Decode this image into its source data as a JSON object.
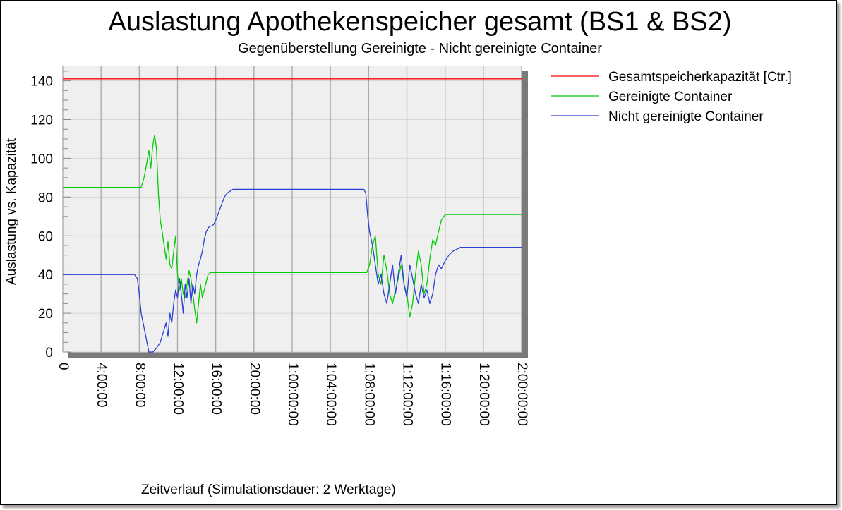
{
  "chart_data": {
    "type": "line",
    "title": "Auslastung Apothekenspeicher gesamt (BS1 & BS2)",
    "subtitle": "Gegenüberstellung Gereinigte - Nicht gereinigte Container",
    "xlabel": "Zeitverlauf (Simulationsdauer: 2 Werktage)",
    "ylabel": "Auslastung vs. Kapazität",
    "xlim": [
      0,
      48
    ],
    "ylim": [
      0,
      140
    ],
    "x_unit": "hours",
    "yticks": [
      0,
      20,
      40,
      60,
      80,
      100,
      120,
      140
    ],
    "xticks": [
      {
        "value": 0,
        "label": "0"
      },
      {
        "value": 4,
        "label": "4:00:00"
      },
      {
        "value": 8,
        "label": "8:00:00"
      },
      {
        "value": 12,
        "label": "12:00:00"
      },
      {
        "value": 16,
        "label": "16:00:00"
      },
      {
        "value": 20,
        "label": "20:00:00"
      },
      {
        "value": 24,
        "label": "1:00:00:00"
      },
      {
        "value": 28,
        "label": "1:04:00:00"
      },
      {
        "value": 32,
        "label": "1:08:00:00"
      },
      {
        "value": 36,
        "label": "1:12:00:00"
      },
      {
        "value": 40,
        "label": "1:16:00:00"
      },
      {
        "value": 44,
        "label": "1:20:00:00"
      },
      {
        "value": 48,
        "label": "2:00:00:00"
      }
    ],
    "grid": true,
    "legend_position": "right",
    "series": [
      {
        "name": "Gesamtspeicherkapazität [Ctr.]",
        "color": "#ff0000",
        "x": [
          0,
          48
        ],
        "y": [
          141,
          141
        ]
      },
      {
        "name": "Gereinigte Container",
        "color": "#00cc00",
        "x": [
          0,
          8.2,
          8.5,
          8.8,
          9.0,
          9.2,
          9.4,
          9.6,
          9.8,
          10.0,
          10.2,
          10.4,
          10.6,
          10.8,
          11.0,
          11.2,
          11.4,
          11.6,
          11.8,
          12.0,
          12.2,
          12.4,
          12.6,
          12.8,
          13.0,
          13.2,
          13.4,
          13.6,
          13.8,
          14.0,
          14.2,
          14.4,
          14.6,
          14.8,
          15.0,
          15.2,
          15.5,
          15.7,
          15.9,
          16.1,
          31.8,
          32.1,
          32.4,
          32.7,
          33.0,
          33.3,
          33.6,
          33.9,
          34.2,
          34.5,
          34.8,
          35.1,
          35.4,
          35.7,
          36.0,
          36.3,
          36.6,
          36.9,
          37.2,
          37.5,
          37.8,
          38.1,
          38.4,
          38.7,
          39.0,
          39.3,
          39.6,
          40.0,
          48
        ],
        "y": [
          85,
          85,
          90,
          98,
          104,
          95,
          106,
          112,
          105,
          82,
          68,
          62,
          55,
          48,
          57,
          45,
          43,
          52,
          60,
          40,
          32,
          38,
          30,
          28,
          35,
          42,
          38,
          30,
          22,
          15,
          25,
          35,
          28,
          32,
          36,
          40,
          41,
          41,
          41,
          41,
          41,
          45,
          55,
          60,
          40,
          35,
          50,
          42,
          30,
          25,
          32,
          38,
          45,
          35,
          30,
          18,
          25,
          40,
          52,
          45,
          30,
          35,
          48,
          58,
          55,
          62,
          68,
          71,
          71
        ]
      },
      {
        "name": "Nicht gereinigte Container",
        "color": "#2a3fd6",
        "x": [
          0,
          7.5,
          7.8,
          8.0,
          8.2,
          8.4,
          8.6,
          8.8,
          9.0,
          9.4,
          9.8,
          10.2,
          10.5,
          10.8,
          11.0,
          11.2,
          11.4,
          11.6,
          11.8,
          12.0,
          12.2,
          12.4,
          12.6,
          12.8,
          13.0,
          13.2,
          13.4,
          13.6,
          13.8,
          14.0,
          14.2,
          14.4,
          14.6,
          14.8,
          15.0,
          15.2,
          15.4,
          15.6,
          15.8,
          16.0,
          16.3,
          16.6,
          16.9,
          17.2,
          17.5,
          17.8,
          18.1,
          18.4,
          18.7,
          19.0,
          31.5,
          31.7,
          31.9,
          32.1,
          32.4,
          32.7,
          33.0,
          33.3,
          33.6,
          33.9,
          34.2,
          34.5,
          34.8,
          35.1,
          35.4,
          35.7,
          36.0,
          36.3,
          36.6,
          36.9,
          37.2,
          37.5,
          37.8,
          38.1,
          38.4,
          38.7,
          39.0,
          39.3,
          39.6,
          40.0,
          40.4,
          40.8,
          41.2,
          41.6,
          42.0,
          48
        ],
        "y": [
          40,
          40,
          38,
          30,
          20,
          15,
          10,
          5,
          0,
          0,
          2,
          5,
          10,
          15,
          8,
          20,
          15,
          25,
          32,
          28,
          38,
          30,
          20,
          35,
          28,
          38,
          25,
          35,
          30,
          40,
          45,
          48,
          52,
          58,
          62,
          64,
          65,
          65,
          66,
          68,
          72,
          76,
          80,
          82,
          83,
          84,
          84,
          84,
          84,
          84,
          84,
          82,
          70,
          62,
          55,
          45,
          35,
          40,
          30,
          25,
          35,
          45,
          30,
          40,
          50,
          35,
          28,
          45,
          38,
          30,
          25,
          35,
          28,
          32,
          25,
          30,
          40,
          45,
          43,
          47,
          50,
          52,
          53,
          54,
          54,
          54
        ]
      }
    ]
  }
}
